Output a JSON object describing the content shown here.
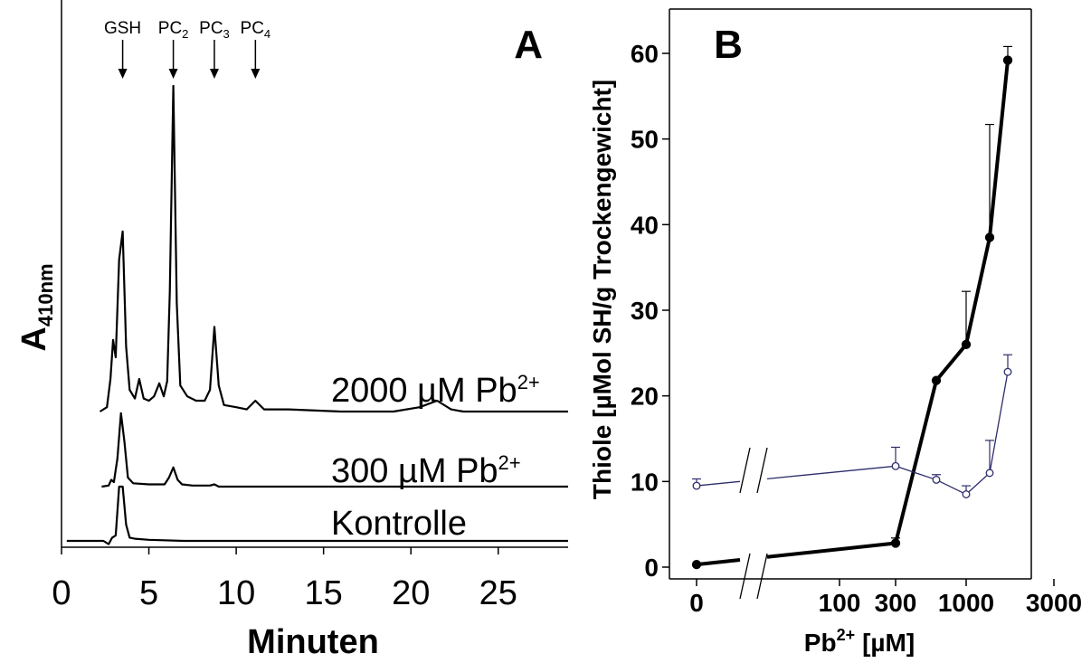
{
  "colors": {
    "ink": "#000000",
    "series_open": "#2d2d6b",
    "background": "#ffffff"
  },
  "chart_data": [
    {
      "panel": "A",
      "type": "line",
      "panel_label": "A",
      "xlabel": "Minuten",
      "ylabel_main": "A",
      "ylabel_sub": "410nm",
      "xlim": [
        0,
        29
      ],
      "xticks": [
        "0",
        "5",
        "10",
        "15",
        "20",
        "25"
      ],
      "grid": false,
      "peak_markers": [
        {
          "label": "GSH",
          "sub": "",
          "x": 3.5
        },
        {
          "label": "PC",
          "sub": "2",
          "x": 6.4
        },
        {
          "label": "PC",
          "sub": "3",
          "x": 8.75
        },
        {
          "label": "PC",
          "sub": "4",
          "x": 11.1
        }
      ],
      "traces": [
        {
          "name": "2000 µM Pb",
          "superscript": "2+",
          "x": [
            2.2,
            2.6,
            2.8,
            2.95,
            3.1,
            3.3,
            3.5,
            3.7,
            3.9,
            4.2,
            4.45,
            4.7,
            5.0,
            5.3,
            5.6,
            5.85,
            6.05,
            6.2,
            6.4,
            6.6,
            6.8,
            7.2,
            7.7,
            8.2,
            8.5,
            8.75,
            9.0,
            9.3,
            10.0,
            10.6,
            11.1,
            11.6,
            13.0,
            16.0,
            19.0,
            20.5,
            21.5,
            22.3,
            23.0,
            25.0,
            29.0
          ],
          "y": [
            0.0,
            0.02,
            0.15,
            0.33,
            0.25,
            0.7,
            0.83,
            0.3,
            0.1,
            0.06,
            0.15,
            0.06,
            0.05,
            0.07,
            0.13,
            0.07,
            0.14,
            0.55,
            1.5,
            0.5,
            0.12,
            0.07,
            0.05,
            0.05,
            0.1,
            0.39,
            0.12,
            0.03,
            0.02,
            0.01,
            0.05,
            0.01,
            0.01,
            0.0,
            0.0,
            0.02,
            0.05,
            0.01,
            0.0,
            0.0,
            0.0
          ]
        },
        {
          "name": "300 µM Pb",
          "superscript": "2+",
          "x": [
            2.3,
            2.7,
            2.85,
            3.0,
            3.2,
            3.4,
            3.6,
            3.8,
            4.1,
            5.0,
            5.9,
            6.15,
            6.4,
            6.65,
            6.9,
            7.5,
            8.5,
            8.75,
            9.0,
            12.0,
            16.0,
            20.0,
            29.0
          ],
          "y": [
            0.0,
            0.01,
            0.06,
            0.04,
            0.25,
            0.65,
            0.4,
            0.08,
            0.03,
            0.02,
            0.02,
            0.08,
            0.17,
            0.06,
            0.02,
            0.01,
            0.01,
            0.02,
            0.0,
            0.0,
            0.0,
            0.0,
            0.0
          ]
        },
        {
          "name": "Kontrolle",
          "superscript": "",
          "x": [
            0.3,
            2.4,
            2.7,
            2.9,
            3.1,
            3.3,
            3.5,
            3.7,
            3.9,
            4.2,
            5.0,
            7.0,
            10.0,
            15.0,
            20.0,
            29.0
          ],
          "y": [
            0.0,
            0.0,
            -0.03,
            0.03,
            0.05,
            0.5,
            0.5,
            0.15,
            0.03,
            0.02,
            0.01,
            0.0,
            0.0,
            0.0,
            0.0,
            0.0
          ]
        }
      ]
    },
    {
      "panel": "B",
      "type": "line",
      "panel_label": "B",
      "xlabel": "Pb",
      "xlabel_sup": "2+",
      "xlabel_unit": "[µM]",
      "ylabel": "Thiole [µMol SH/g Trockengewicht]",
      "ylim": [
        0,
        65
      ],
      "yticks": [
        0,
        10,
        20,
        30,
        40,
        50,
        60
      ],
      "xticks": [
        "0",
        "100",
        "300",
        "1000",
        "3000"
      ],
      "axis_break": true,
      "grid": false,
      "series": [
        {
          "name": "",
          "marker": "filled",
          "x": [
            0,
            300,
            600,
            1000,
            1400,
            1800
          ],
          "y": [
            0.3,
            2.8,
            21.8,
            26.0,
            38.5,
            59.2
          ],
          "err": [
            0,
            0.6,
            0,
            6.2,
            13.2,
            1.6
          ]
        },
        {
          "name": "",
          "marker": "open",
          "x": [
            0,
            300,
            600,
            1000,
            1400,
            1800
          ],
          "y": [
            9.5,
            11.8,
            10.2,
            8.5,
            11.0,
            22.8
          ],
          "err": [
            0.8,
            2.2,
            0.6,
            1.0,
            3.8,
            2.0
          ]
        }
      ]
    }
  ]
}
